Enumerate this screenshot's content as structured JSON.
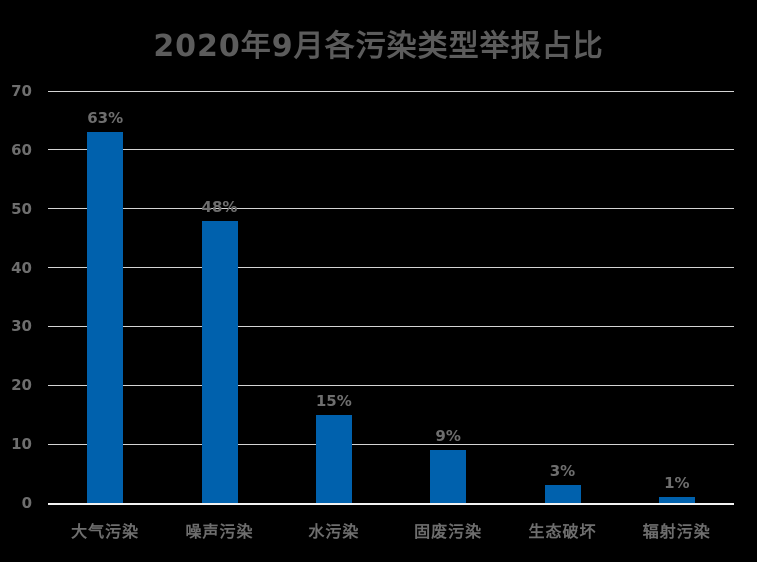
{
  "chart_data": {
    "type": "bar",
    "title": "2020年9月各污染类型举报占比",
    "categories": [
      "大气污染",
      "噪声污染",
      "水污染",
      "固废污染",
      "生态破坏",
      "辐射污染"
    ],
    "values": [
      63,
      48,
      15,
      9,
      3,
      1
    ],
    "data_labels": [
      "63%",
      "48%",
      "15%",
      "9%",
      "3%",
      "1%"
    ],
    "xlabel": "",
    "ylabel": "",
    "ylim": [
      0,
      70
    ],
    "yticks": [
      0,
      10,
      20,
      30,
      40,
      50,
      60,
      70
    ],
    "grid": true,
    "legend": "none",
    "colors": {
      "background": "#000000",
      "bar": "#0061AD",
      "gridline": "#D4D4D4",
      "axis_line": "#F2F2F2",
      "title_text": "#5C5C5C",
      "label_text": "#6E6E6E"
    }
  }
}
